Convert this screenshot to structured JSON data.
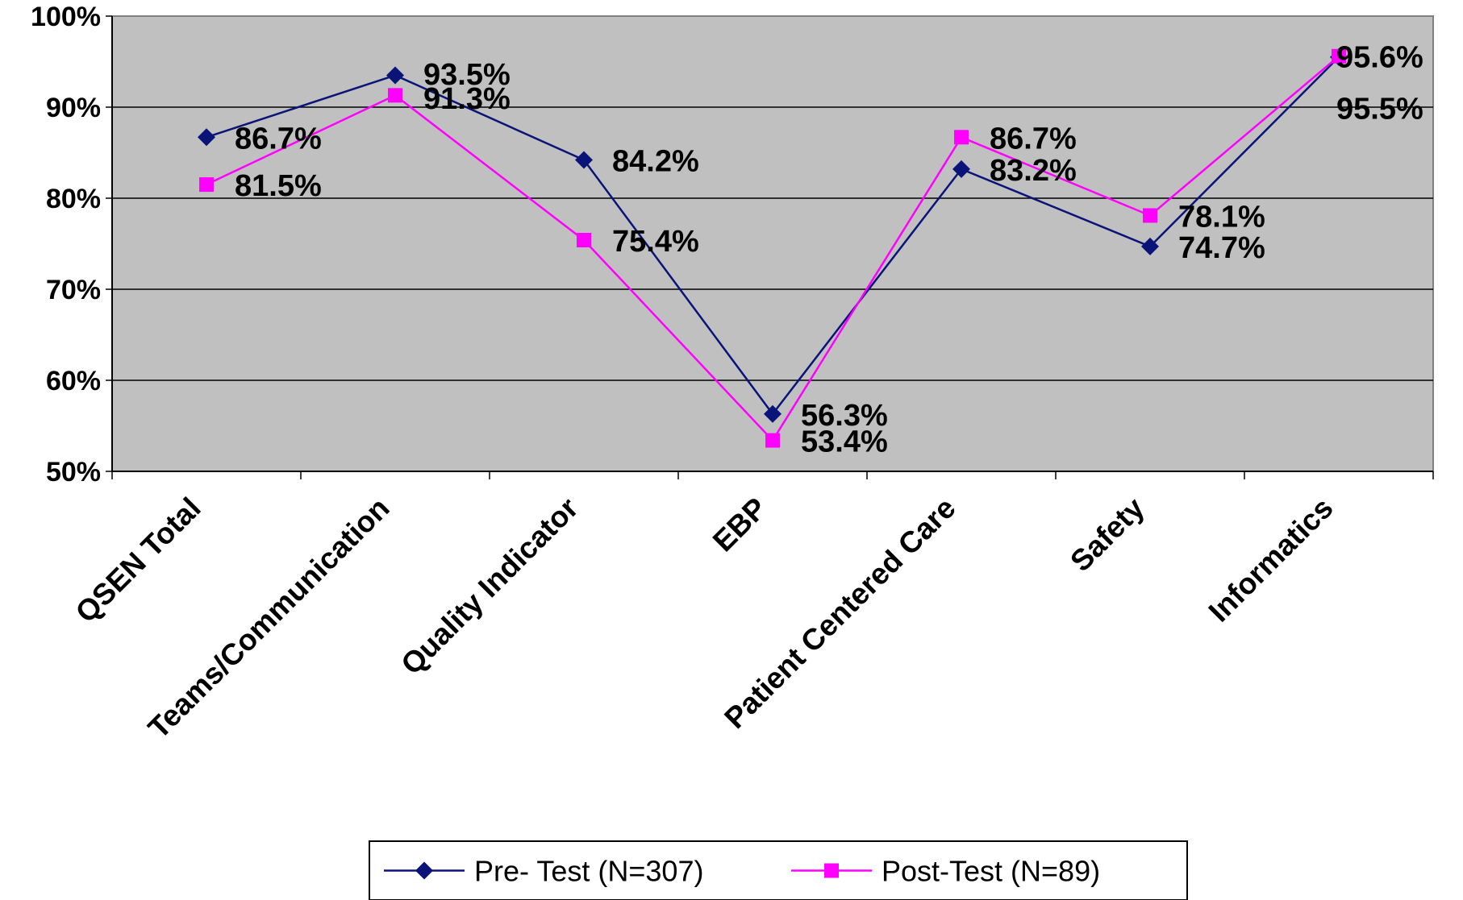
{
  "chart_data": {
    "type": "line",
    "title": "",
    "xlabel": "",
    "ylabel": "",
    "ylim": [
      50,
      100
    ],
    "yticks": [
      "50%",
      "60%",
      "70%",
      "80%",
      "90%",
      "100%"
    ],
    "grid": true,
    "legend_position": "bottom",
    "plot_background": "#c0c0c0",
    "categories": [
      "QSEN Total",
      "Teams/Communication",
      "Quality Indicator",
      "EBP",
      "Patient Centered Care",
      "Safety",
      "Informatics"
    ],
    "series": [
      {
        "name": "Pre- Test (N=307)",
        "color": "#0a1478",
        "marker": "diamond",
        "values": [
          86.7,
          93.5,
          84.2,
          56.3,
          83.2,
          74.7,
          95.5
        ],
        "labels": [
          "86.7%",
          "93.5%",
          "84.2%",
          "56.3%",
          "83.2%",
          "74.7%",
          "95.5%"
        ]
      },
      {
        "name": "Post-Test (N=89)",
        "color": "#ff00ff",
        "marker": "square",
        "values": [
          81.5,
          91.3,
          75.4,
          53.4,
          86.7,
          78.1,
          95.6
        ],
        "labels": [
          "81.5%",
          "91.3%",
          "75.4%",
          "53.4%",
          "86.7%",
          "78.1%",
          "95.6%"
        ]
      }
    ]
  }
}
